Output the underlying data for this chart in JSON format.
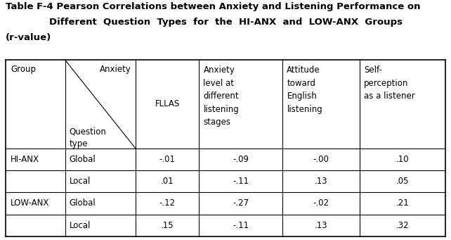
{
  "title_line1": "Table F-4 Pearson Correlations between Anxiety and Listening Performance on",
  "title_line2": "Different  Question  Types  for  the  HI-ANX  and  LOW-ANX  Groups",
  "title_line3": "(r-value)",
  "col_headers": [
    "FLLAS",
    "Anxiety\nlevel at\ndifferent\nlistening\nstages",
    "Attitude\ntoward\nEnglish\nlistening",
    "Self-\nperception\nas a listener"
  ],
  "data": {
    "HI-ANX": {
      "Global": [
        "-.01",
        "-.09",
        "-.00",
        ".10"
      ],
      "Local": [
        ".01",
        "-.11",
        ".13",
        ".05"
      ]
    },
    "LOW-ANX": {
      "Global": [
        "-.12",
        "-.27",
        "-.02",
        ".21"
      ],
      "Local": [
        ".15",
        "-.11",
        ".13",
        ".32"
      ]
    }
  },
  "background_color": "#ffffff",
  "text_color": "#000000",
  "font_size": 8.5,
  "title_font_size": 9.5,
  "fig_width": 6.42,
  "fig_height": 3.41,
  "dpi": 100
}
